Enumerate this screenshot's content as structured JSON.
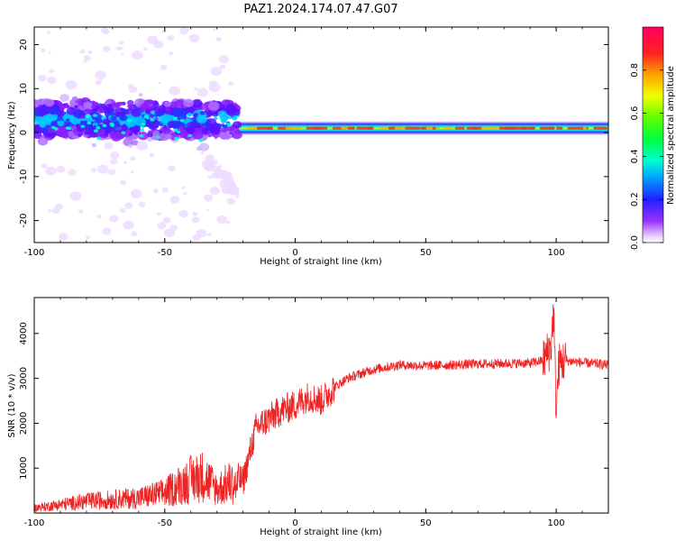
{
  "title": "PAZ1.2024.174.07.47.G07",
  "chart_data": [
    {
      "type": "heatmap",
      "xlabel": "Height of straight line (km)",
      "ylabel": "Frequency (Hz)",
      "xlim": [
        -100,
        120
      ],
      "ylim": [
        -25,
        24
      ],
      "x_ticks": [
        "-100",
        "-50",
        "0",
        "50",
        "100"
      ],
      "y_ticks": [
        "20",
        "10",
        "0",
        "-10",
        "-20"
      ],
      "colorbar": {
        "label": "Normalized spectral amplitude",
        "range": [
          0,
          1
        ],
        "ticks": [
          "0.0",
          "0.2",
          "0.4",
          "0.6",
          "0.8"
        ],
        "colormap": "gist_rainbow_r"
      },
      "description_points": {
        "dominant_band_frequency_hz": 1,
        "band_x_range": [
          -22,
          120
        ],
        "scattered_region_x_range": [
          -100,
          -22
        ],
        "scattered_center_frequency_hz": 3
      }
    },
    {
      "type": "line",
      "xlabel": "Height of straight line (km)",
      "ylabel": "SNR (10 * v/v)",
      "xlim": [
        -100,
        120
      ],
      "ylim": [
        0,
        4800
      ],
      "x_ticks": [
        "-100",
        "-50",
        "0",
        "50",
        "100"
      ],
      "y_ticks": [
        "4000",
        "3000",
        "2000",
        "1000"
      ],
      "line_color": "#ee2222",
      "series": [
        {
          "x": [
            -100,
            -90,
            -80,
            -70,
            -60,
            -50,
            -40,
            -35,
            -30,
            -25,
            -20,
            -15,
            -10,
            -5,
            0,
            5,
            10,
            15,
            20,
            25,
            30,
            40,
            50,
            60,
            70,
            80,
            90,
            95,
            98,
            99,
            100,
            101,
            103,
            110,
            120
          ],
          "values": [
            150,
            250,
            350,
            400,
            450,
            600,
            1000,
            1100,
            700,
            900,
            700,
            1900,
            2100,
            2300,
            2400,
            2600,
            2500,
            2800,
            3000,
            3100,
            3200,
            3300,
            3280,
            3300,
            3320,
            3330,
            3340,
            3400,
            3700,
            4500,
            2200,
            3300,
            3400,
            3350,
            3300
          ]
        }
      ]
    }
  ]
}
